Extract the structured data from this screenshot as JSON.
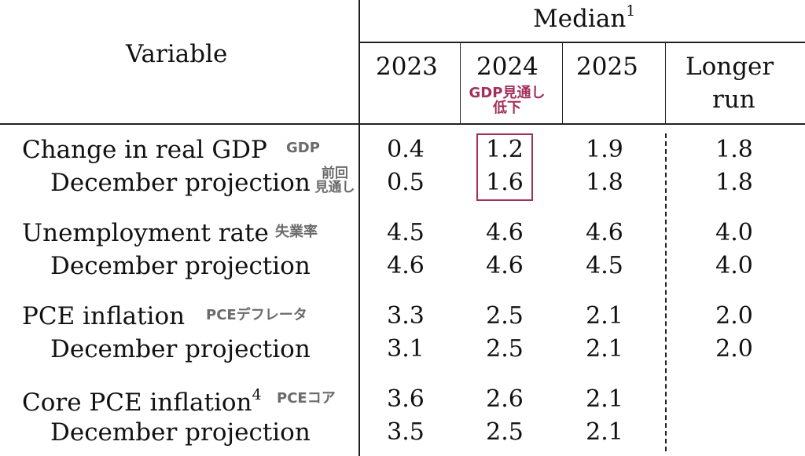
{
  "header": {
    "variable": "Variable",
    "median": "Median",
    "median_note": "1",
    "years": [
      "2023",
      "2024",
      "2025"
    ],
    "longer_run_line1": "Longer",
    "longer_run_line2": "run",
    "annotation_line1": "GDP見通し",
    "annotation_line2": "低下"
  },
  "rows": [
    {
      "label": "Change in real GDP",
      "tag": "GDP",
      "values": [
        "0.4",
        "1.2",
        "1.9",
        "1.8"
      ]
    },
    {
      "label": "December projection",
      "tag_line1": "前回",
      "tag_line2": "見通し",
      "values": [
        "0.5",
        "1.6",
        "1.8",
        "1.8"
      ]
    },
    {
      "label": "Unemployment rate",
      "tag": "失業率",
      "values": [
        "4.5",
        "4.6",
        "4.6",
        "4.0"
      ]
    },
    {
      "label": "December projection",
      "values": [
        "4.6",
        "4.6",
        "4.5",
        "4.0"
      ]
    },
    {
      "label": "PCE inflation",
      "tag": "PCEデフレータ",
      "values": [
        "3.3",
        "2.5",
        "2.1",
        "2.0"
      ]
    },
    {
      "label": "December projection",
      "values": [
        "3.1",
        "2.5",
        "2.1",
        "2.0"
      ]
    },
    {
      "label": "Core PCE inflation",
      "note": "4",
      "tag": "PCEコア",
      "values": [
        "3.6",
        "2.6",
        "2.1",
        ""
      ]
    },
    {
      "label": "December projection",
      "values": [
        "3.5",
        "2.5",
        "2.1",
        ""
      ]
    }
  ],
  "colors": {
    "highlight_box": "#a3305c",
    "annotation": "#a3305c",
    "tag": "#6b6b6b"
  }
}
